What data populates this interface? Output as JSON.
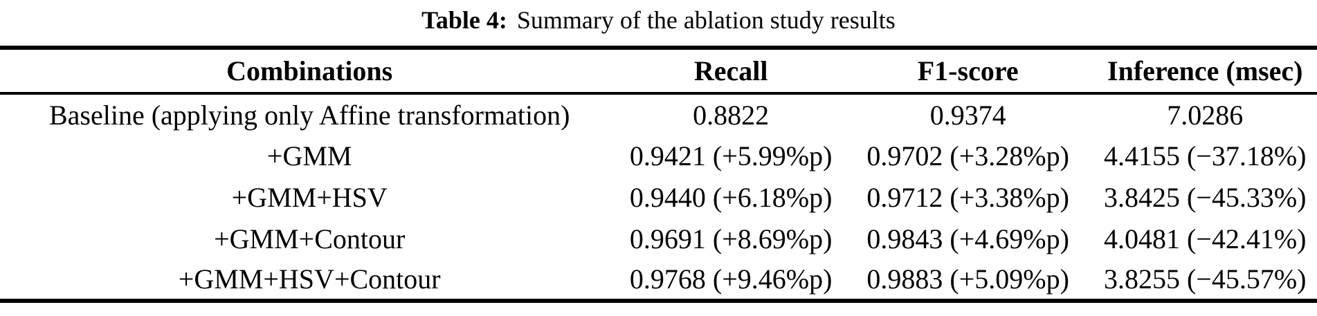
{
  "caption": {
    "label": "Table 4:",
    "text": "Summary of the ablation study results"
  },
  "table": {
    "headers": [
      "Combinations",
      "Recall",
      "F1-score",
      "Inference (msec)"
    ],
    "rows": [
      [
        "Baseline (applying only Affine transformation)",
        "0.8822",
        "0.9374",
        "7.0286"
      ],
      [
        "+GMM",
        "0.9421 (+5.99%p)",
        "0.9702 (+3.28%p)",
        "4.4155 (−37.18%)"
      ],
      [
        "+GMM+HSV",
        "0.9440 (+6.18%p)",
        "0.9712 (+3.38%p)",
        "3.8425 (−45.33%)"
      ],
      [
        "+GMM+Contour",
        "0.9691 (+8.69%p)",
        "0.9843 (+4.69%p)",
        "4.0481 (−42.41%)"
      ],
      [
        "+GMM+HSV+Contour",
        "0.9768 (+9.46%p)",
        "0.9883 (+5.09%p)",
        "3.8255 (−45.57%)"
      ]
    ]
  },
  "colors": {
    "text": "#000000",
    "background": "#ffffff",
    "rule": "#000000"
  }
}
